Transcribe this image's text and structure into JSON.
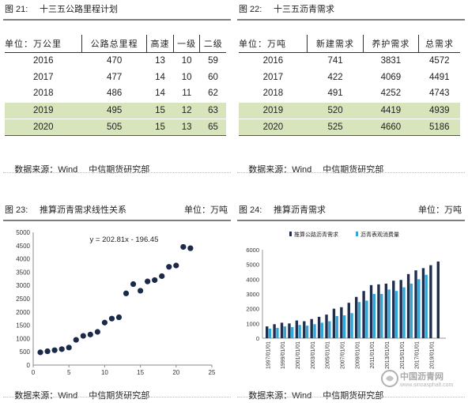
{
  "source_label": "数据来源：",
  "source_wind": "Wind",
  "source_org": "中信期货研究部",
  "panel21": {
    "fig_no": "图 21:",
    "title": "十三五公路里程计划",
    "headers": [
      "单位：万公里",
      "公路总里程",
      "高速",
      "一级",
      "二级"
    ],
    "rows": [
      [
        "2016",
        "470",
        "13",
        "10",
        "59"
      ],
      [
        "2017",
        "477",
        "14",
        "10",
        "60"
      ],
      [
        "2018",
        "486",
        "14",
        "11",
        "62"
      ],
      [
        "2019",
        "495",
        "15",
        "12",
        "63"
      ],
      [
        "2020",
        "505",
        "15",
        "13",
        "65"
      ]
    ]
  },
  "panel22": {
    "fig_no": "图 22:",
    "title": "十三五沥青需求",
    "headers": [
      "单位：万吨",
      "新建需求",
      "养护需求",
      "总需求"
    ],
    "rows": [
      [
        "2016",
        "741",
        "3831",
        "4572"
      ],
      [
        "2017",
        "422",
        "4069",
        "4491"
      ],
      [
        "2018",
        "491",
        "4252",
        "4743"
      ],
      [
        "2019",
        "520",
        "4419",
        "4939"
      ],
      [
        "2020",
        "525",
        "4660",
        "5186"
      ]
    ]
  },
  "panel23": {
    "fig_no": "图 23:",
    "title": "推算沥青需求线性关系",
    "unit": "单位：万吨"
  },
  "panel24": {
    "fig_no": "图 24:",
    "title": "推算沥青需求",
    "unit": "单位：万吨"
  },
  "watermark": {
    "name": "中国沥青网",
    "url": "www.sinoasphalt.com"
  },
  "chart_data": [
    {
      "type": "scatter",
      "title": "",
      "equation": "y = 202.81x - 196.45",
      "xlim": [
        0,
        25
      ],
      "ylim": [
        0,
        5000
      ],
      "xticks": [
        "0",
        "5",
        "10",
        "15",
        "20",
        "25"
      ],
      "yticks": [
        "0",
        "500",
        "1000",
        "1500",
        "2000",
        "2500",
        "3000",
        "3500",
        "4000",
        "4500",
        "5000"
      ],
      "grid": false,
      "points": [
        [
          1,
          480
        ],
        [
          2,
          520
        ],
        [
          3,
          560
        ],
        [
          4,
          600
        ],
        [
          5,
          660
        ],
        [
          6,
          950
        ],
        [
          7,
          1100
        ],
        [
          8,
          1150
        ],
        [
          9,
          1250
        ],
        [
          10,
          1600
        ],
        [
          11,
          1750
        ],
        [
          12,
          1800
        ],
        [
          13,
          2700
        ],
        [
          14,
          3050
        ],
        [
          15,
          2800
        ],
        [
          16,
          3150
        ],
        [
          17,
          3200
        ],
        [
          18,
          3350
        ],
        [
          19,
          3700
        ],
        [
          20,
          3750
        ],
        [
          21,
          4450
        ],
        [
          22,
          4400
        ]
      ],
      "trendline": {
        "slope": 202.81,
        "intercept": -196.45
      }
    },
    {
      "type": "bar",
      "title": "",
      "legend_position": "top",
      "ylim": [
        0,
        6000
      ],
      "yticks": [
        "0",
        "1000",
        "2000",
        "3000",
        "4000",
        "5000",
        "6000"
      ],
      "categories": [
        "1997",
        "1998",
        "1999",
        "2000",
        "2001",
        "2002",
        "2003",
        "2004",
        "2005",
        "2006",
        "2007",
        "2008",
        "2009",
        "2010",
        "2011",
        "2012",
        "2013",
        "2014",
        "2015",
        "2016",
        "2017",
        "2018",
        "2019",
        "2020"
      ],
      "xtick_labels": [
        "1997/01/01",
        "1999/01/01",
        "2001/01/01",
        "2003/01/01",
        "2005/01/01",
        "2007/01/01",
        "2009/01/01",
        "2011/01/01",
        "2013/01/01",
        "2015/01/01",
        "2017/01/01",
        "2019/01/01"
      ],
      "series": [
        {
          "name": "推算公路沥青需求",
          "color": "#1f2d4f",
          "values": [
            800,
            950,
            1050,
            1000,
            1200,
            1150,
            1300,
            1450,
            1600,
            2000,
            2100,
            2400,
            2800,
            3200,
            3600,
            3650,
            3700,
            3900,
            3950,
            4350,
            4600,
            4750,
            4950,
            5200
          ]
        },
        {
          "name": "沥青表观消费量",
          "color": "#35a7d6",
          "values": [
            650,
            700,
            800,
            750,
            900,
            850,
            950,
            1050,
            1150,
            1500,
            1550,
            1700,
            2450,
            2550,
            3000,
            3000,
            3300,
            3200,
            3450,
            3700,
            4000,
            4300,
            null,
            null
          ]
        }
      ]
    }
  ]
}
